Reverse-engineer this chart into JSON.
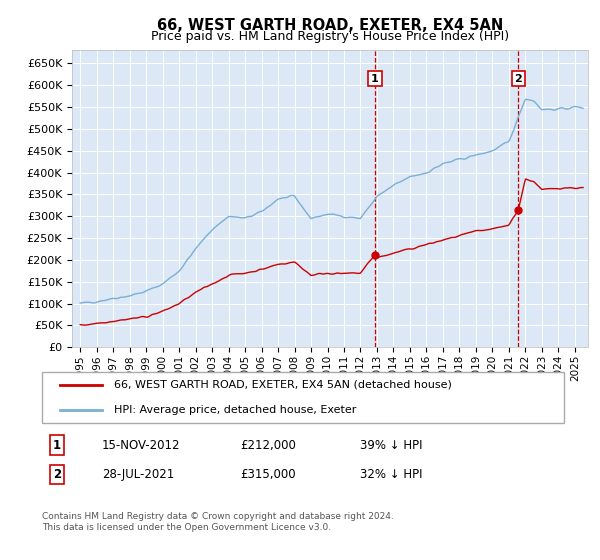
{
  "title": "66, WEST GARTH ROAD, EXETER, EX4 5AN",
  "subtitle": "Price paid vs. HM Land Registry's House Price Index (HPI)",
  "legend_line1": "66, WEST GARTH ROAD, EXETER, EX4 5AN (detached house)",
  "legend_line2": "HPI: Average price, detached house, Exeter",
  "annotation1_date": "15-NOV-2012",
  "annotation1_price": "£212,000",
  "annotation1_hpi": "39% ↓ HPI",
  "annotation2_date": "28-JUL-2021",
  "annotation2_price": "£315,000",
  "annotation2_hpi": "32% ↓ HPI",
  "footer": "Contains HM Land Registry data © Crown copyright and database right 2024.\nThis data is licensed under the Open Government Licence v3.0.",
  "sale1_year": 2012.88,
  "sale1_value": 212000,
  "sale2_year": 2021.57,
  "sale2_value": 315000,
  "hpi_color": "#7bafd4",
  "price_color": "#cc0000",
  "background_plot": "#dce8f5",
  "grid_color": "#ffffff",
  "ylim_min": 0,
  "ylim_max": 680000,
  "xlim_min": 1994.5,
  "xlim_max": 2025.8
}
